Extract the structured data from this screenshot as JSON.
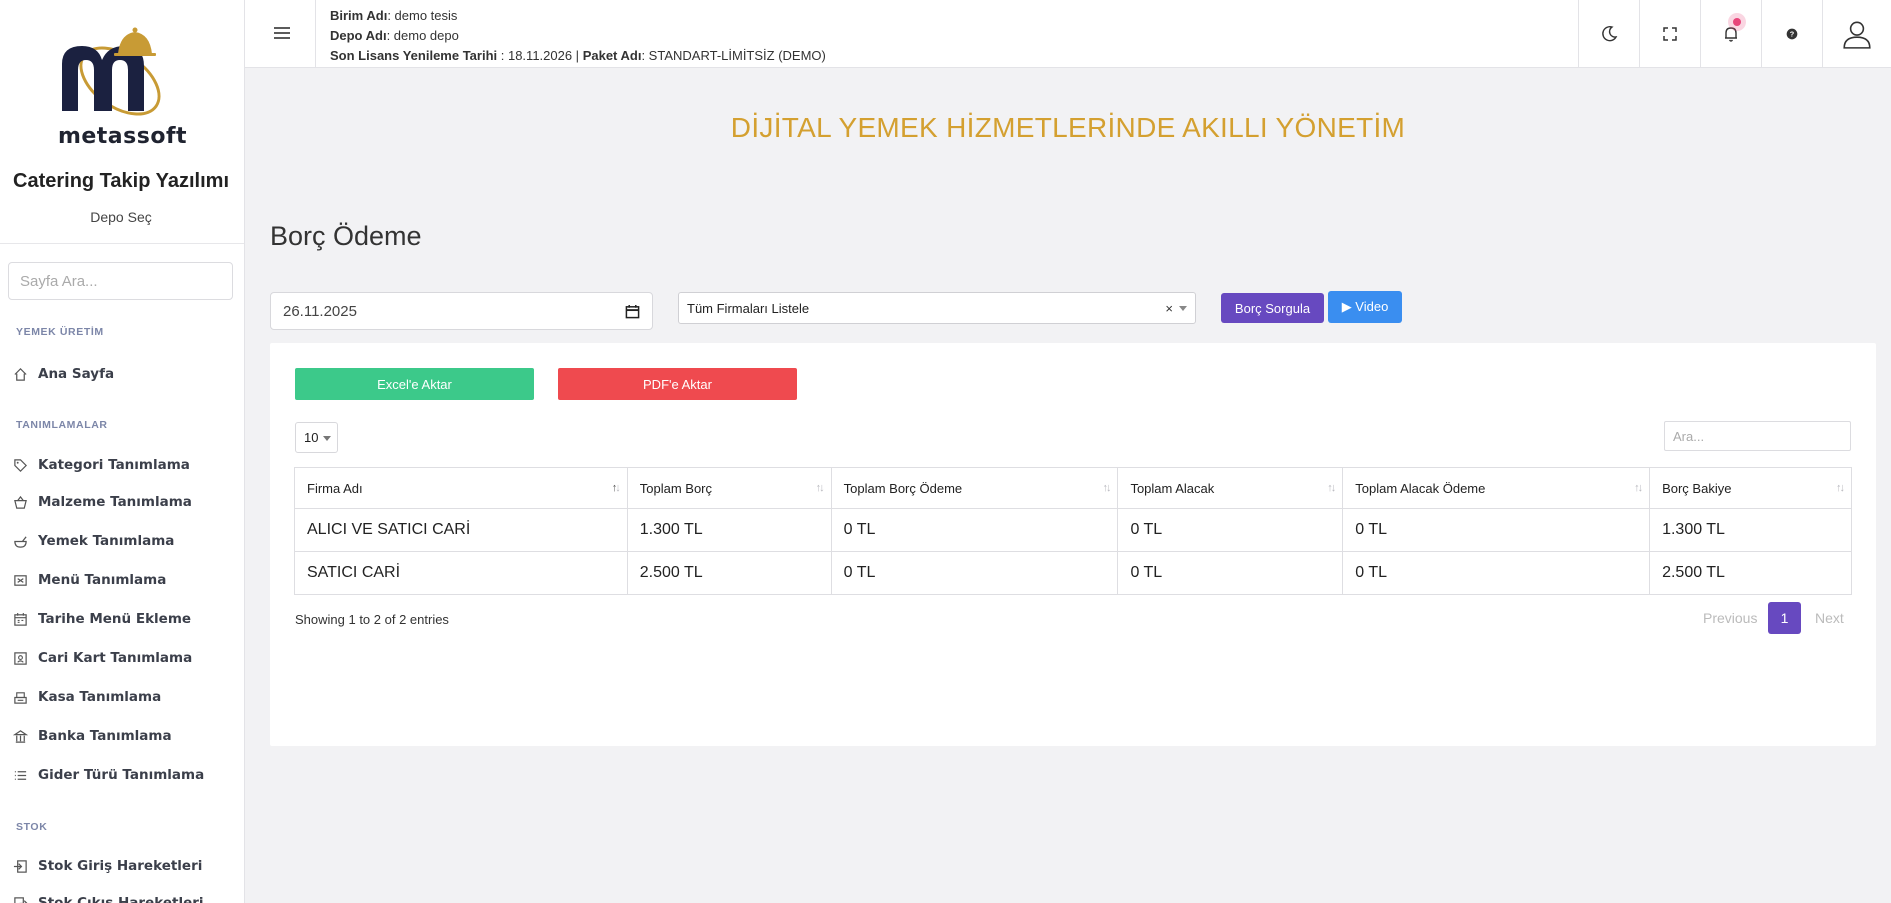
{
  "sidebar": {
    "logo_text": "metassoft",
    "app_title": "Catering Takip Yazılımı",
    "depo_select": "Depo Seç",
    "search_placeholder": "Sayfa Ara...",
    "sections": {
      "yemek_uretim": "YEMEK ÜRETİM",
      "tanimlamalar": "TANIMLAMALAR",
      "stok": "STOK"
    },
    "items": {
      "ana_sayfa": "Ana Sayfa",
      "kategori": "Kategori Tanımlama",
      "malzeme": "Malzeme Tanımlama",
      "yemek": "Yemek Tanımlama",
      "menu": "Menü Tanımlama",
      "tarihe_menu": "Tarihe Menü Ekleme",
      "cari_kart": "Cari Kart Tanımlama",
      "kasa": "Kasa Tanımlama",
      "banka": "Banka Tanımlama",
      "gider_turu": "Gider Türü Tanımlama",
      "stok_giris": "Stok Giriş Hareketleri",
      "stok_cikis": "Stok Çıkış Hareketleri"
    }
  },
  "topbar": {
    "birim_label": "Birim Adı",
    "birim_value": ": demo tesis",
    "depo_label": "Depo Adı",
    "depo_value": ": demo depo",
    "lisans_label": "Son Lisans Yenileme Tarihi",
    "lisans_value": " : 18.11.2026 | ",
    "paket_label": "Paket Adı",
    "paket_value": ": STANDART-LİMİTSİZ (DEMO)"
  },
  "banner": "DİJİTAL YEMEK HİZMETLERİNDE AKILLI YÖNETİM",
  "page_title": "Borç Ödeme",
  "filters": {
    "date_value": "26.11.2025",
    "firma_select": "Tüm Firmaları Listele",
    "clear_symbol": "×",
    "query_button": "Borç Sorgula",
    "video_button": "▶ Video"
  },
  "export": {
    "excel": "Excel'e Aktar",
    "pdf": "PDF'e Aktar"
  },
  "table": {
    "page_length": "10",
    "search_placeholder": "Ara...",
    "columns": [
      "Firma Adı",
      "Toplam Borç",
      "Toplam Borç Ödeme",
      "Toplam Alacak",
      "Toplam Alacak Ödeme",
      "Borç Bakiye"
    ],
    "rows": [
      [
        "ALICI VE SATICI CARİ",
        "1.300 TL",
        "0 TL",
        "0 TL",
        "0 TL",
        "1.300 TL"
      ],
      [
        "SATICI CARİ",
        "2.500 TL",
        "0 TL",
        "0 TL",
        "0 TL",
        "2.500 TL"
      ]
    ],
    "info": "Showing 1 to 2 of 2 entries",
    "pager": {
      "previous": "Previous",
      "current": "1",
      "next": "Next"
    }
  },
  "colors": {
    "brand_gold": "#d4a030",
    "primary_purple": "#6749c0",
    "video_blue": "#3a8ef0",
    "excel_green": "#3cc98a",
    "pdf_red": "#ef4a4f"
  }
}
